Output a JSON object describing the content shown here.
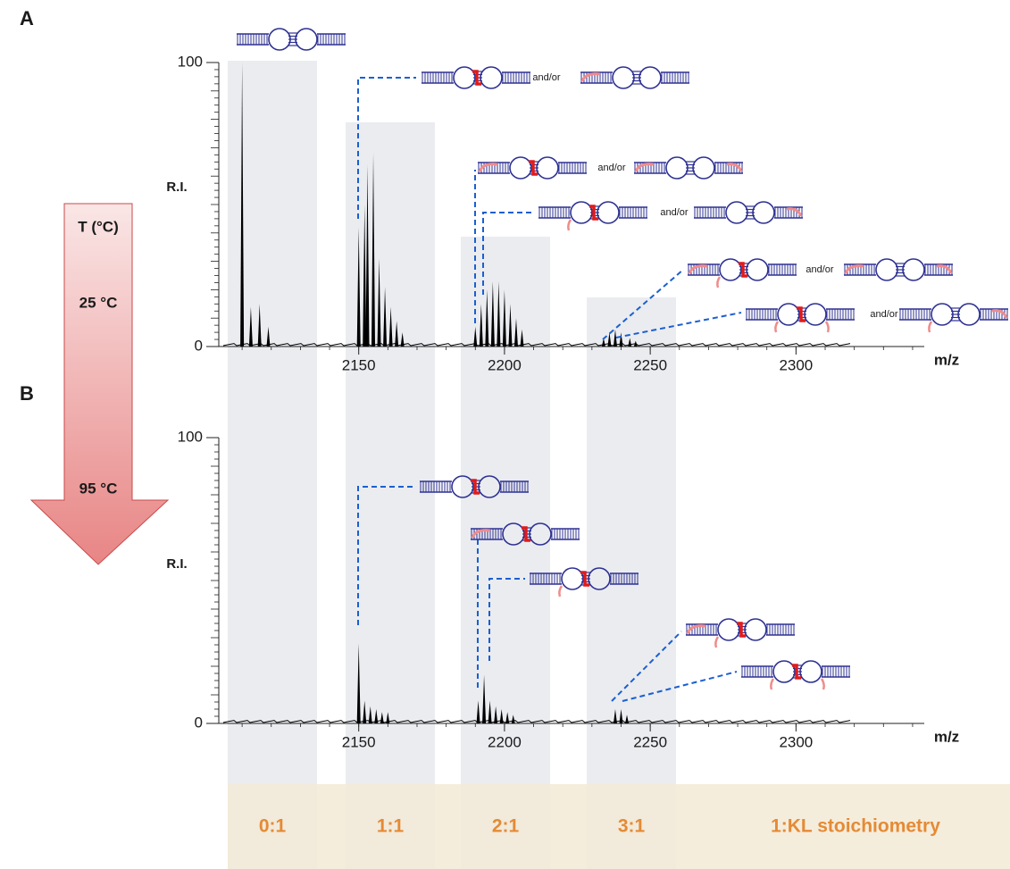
{
  "chart_data": [
    {
      "type": "spectrum",
      "panel_label": "A",
      "y_label": "R.I.",
      "x_label": "m/z",
      "xlim": [
        2102,
        2344
      ],
      "xticks": [
        2150,
        2200,
        2250,
        2300
      ],
      "ylim": [
        0,
        100
      ],
      "yticks": [
        0,
        100
      ],
      "color": "#000000",
      "x": [
        2110,
        2113,
        2116,
        2119,
        2150,
        2152,
        2153,
        2155,
        2157,
        2159,
        2161,
        2163,
        2165,
        2190,
        2192,
        2194,
        2196,
        2198,
        2200,
        2202,
        2204,
        2206,
        2234,
        2236,
        2238,
        2240,
        2243,
        2245
      ],
      "values": [
        100,
        14,
        15,
        7,
        42,
        50,
        64,
        68,
        31,
        21,
        14,
        9,
        5,
        7,
        15,
        20,
        23,
        23,
        20,
        15,
        10,
        6,
        3,
        5,
        6,
        5,
        3,
        2
      ],
      "annotations": [
        "and/or",
        "and/or",
        "and/or",
        "and/or",
        "and/or"
      ]
    },
    {
      "type": "spectrum",
      "panel_label": "B",
      "y_label": "R.I.",
      "x_label": "m/z",
      "xlim": [
        2102,
        2344
      ],
      "xticks": [
        2150,
        2200,
        2250,
        2300
      ],
      "ylim": [
        0,
        100
      ],
      "yticks": [
        0,
        100
      ],
      "color": "#000000",
      "x": [
        2150,
        2152,
        2154,
        2156,
        2158,
        2160,
        2191,
        2193,
        2195,
        2197,
        2199,
        2201,
        2203,
        2238,
        2240,
        2242
      ],
      "values": [
        28,
        8,
        6,
        5,
        4,
        4,
        8,
        17,
        8,
        6,
        5,
        4,
        3,
        5,
        5,
        3
      ]
    }
  ],
  "temperature": {
    "title": "T (°C)",
    "start": "25 °C",
    "end": "95 °C"
  },
  "stoichiometry": {
    "labels": [
      "0:1",
      "1:1",
      "2:1",
      "3:1"
    ],
    "title": "1:KL stoichiometry"
  }
}
